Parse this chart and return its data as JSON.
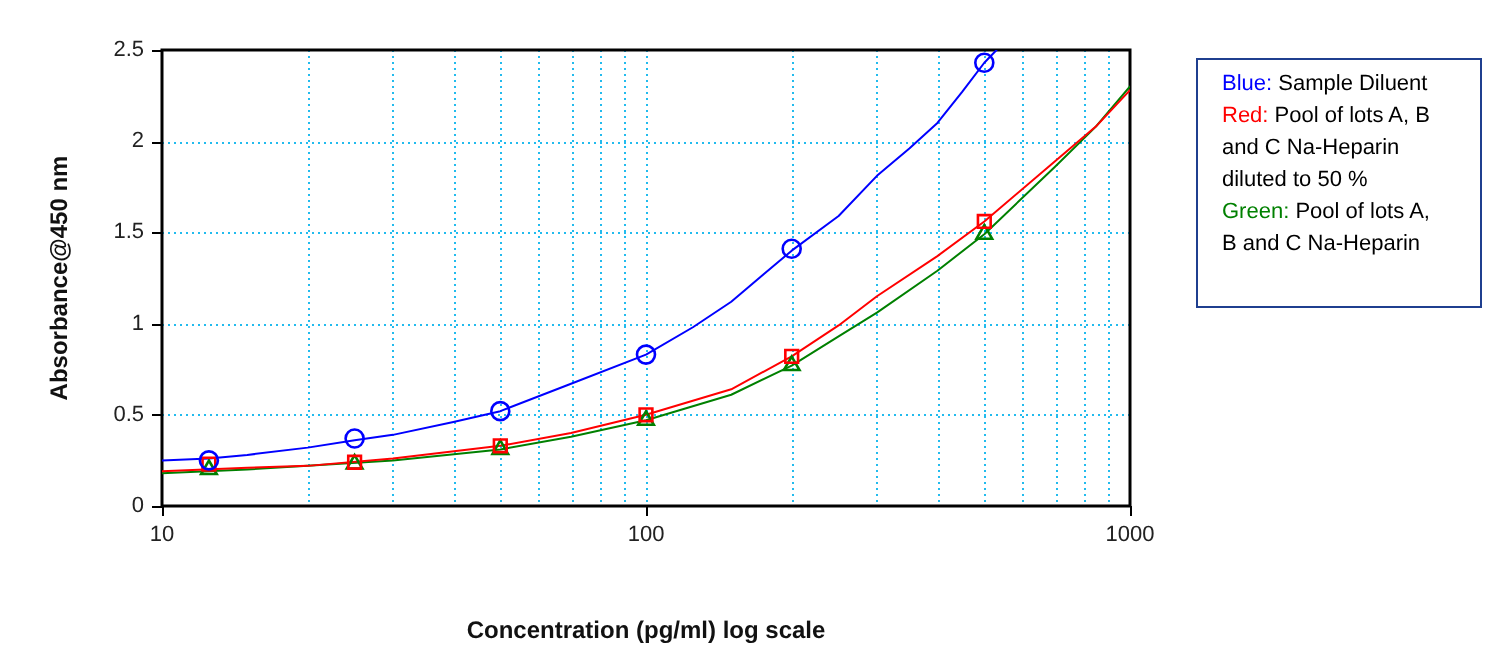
{
  "chart_data": {
    "type": "scatter",
    "xlabel": "Concentration (pg/ml) log scale",
    "ylabel": "Absorbance@450 nm",
    "log": "x",
    "grid": true,
    "legend": "right",
    "xlim": [
      10,
      1000
    ],
    "ylim": [
      0,
      2.5
    ],
    "xticks": [
      10,
      {
        "value": 20,
        "label": null
      },
      {
        "value": 30,
        "label": null
      },
      {
        "value": 40,
        "label": null
      },
      {
        "value": 50,
        "label": null
      },
      {
        "value": 60,
        "label": null
      },
      {
        "value": 70,
        "label": null
      },
      {
        "value": 80,
        "label": null
      },
      {
        "value": 90,
        "label": null
      },
      100,
      {
        "value": 200,
        "label": null
      },
      {
        "value": 300,
        "label": null
      },
      {
        "value": 400,
        "label": null
      },
      {
        "value": 500,
        "label": null
      },
      {
        "value": 600,
        "label": null
      },
      {
        "value": 700,
        "label": null
      },
      {
        "value": 800,
        "label": null
      },
      {
        "value": 900,
        "label": null
      },
      1000
    ],
    "yticks": [
      0,
      0.5,
      1,
      1.5,
      2,
      2.5
    ],
    "series": [
      {
        "name": "Blue: Sample Diluent",
        "type": "scatter",
        "marker": "circle",
        "color": "#0000ff",
        "x": [
          12.5,
          25,
          50,
          100,
          200,
          500
        ],
        "values": [
          0.25,
          0.37,
          0.52,
          0.83,
          1.41,
          2.43
        ]
      },
      {
        "name": "Red: Pool of lots A, B and C Na-Heparin diluted to 50 %",
        "type": "scatter",
        "marker": "square",
        "color": "#ff0000",
        "x": [
          12.5,
          25,
          50,
          100,
          200,
          500
        ],
        "values": [
          0.23,
          0.24,
          0.33,
          0.5,
          0.82,
          1.56
        ]
      },
      {
        "name": "Green: Pool of lots A, B and C Na-Heparin",
        "type": "scatter",
        "marker": "triangle",
        "color": "#008000",
        "x": [
          12.5,
          25,
          50,
          100,
          200,
          500
        ],
        "values": [
          0.2,
          0.23,
          0.31,
          0.47,
          0.77,
          1.49
        ]
      },
      {
        "type": "line",
        "color": "#0000ff",
        "x": [
          10,
          12.5,
          15,
          20,
          25,
          30,
          40,
          50,
          70,
          100,
          125,
          150,
          175,
          200,
          250,
          300,
          350,
          400,
          450,
          500,
          530
        ],
        "values": [
          0.25,
          0.26,
          0.28,
          0.32,
          0.36,
          0.39,
          0.46,
          0.52,
          0.67,
          0.83,
          0.98,
          1.12,
          1.27,
          1.4,
          1.59,
          1.81,
          1.96,
          2.1,
          2.27,
          2.43,
          2.5
        ]
      },
      {
        "type": "line",
        "color": "#ff0000",
        "x": [
          10,
          15,
          20,
          30,
          50,
          70,
          100,
          150,
          200,
          250,
          300,
          400,
          500,
          700,
          850,
          1000
        ],
        "values": [
          0.19,
          0.21,
          0.22,
          0.26,
          0.33,
          0.4,
          0.5,
          0.64,
          0.82,
          0.99,
          1.15,
          1.37,
          1.56,
          1.89,
          2.08,
          2.28
        ]
      },
      {
        "type": "line",
        "color": "#008000",
        "x": [
          10,
          15,
          20,
          30,
          50,
          70,
          100,
          150,
          200,
          250,
          300,
          400,
          500,
          700,
          850,
          1000
        ],
        "values": [
          0.18,
          0.2,
          0.22,
          0.25,
          0.31,
          0.38,
          0.47,
          0.61,
          0.77,
          0.93,
          1.06,
          1.29,
          1.49,
          1.86,
          2.08,
          2.3
        ]
      }
    ]
  }
}
